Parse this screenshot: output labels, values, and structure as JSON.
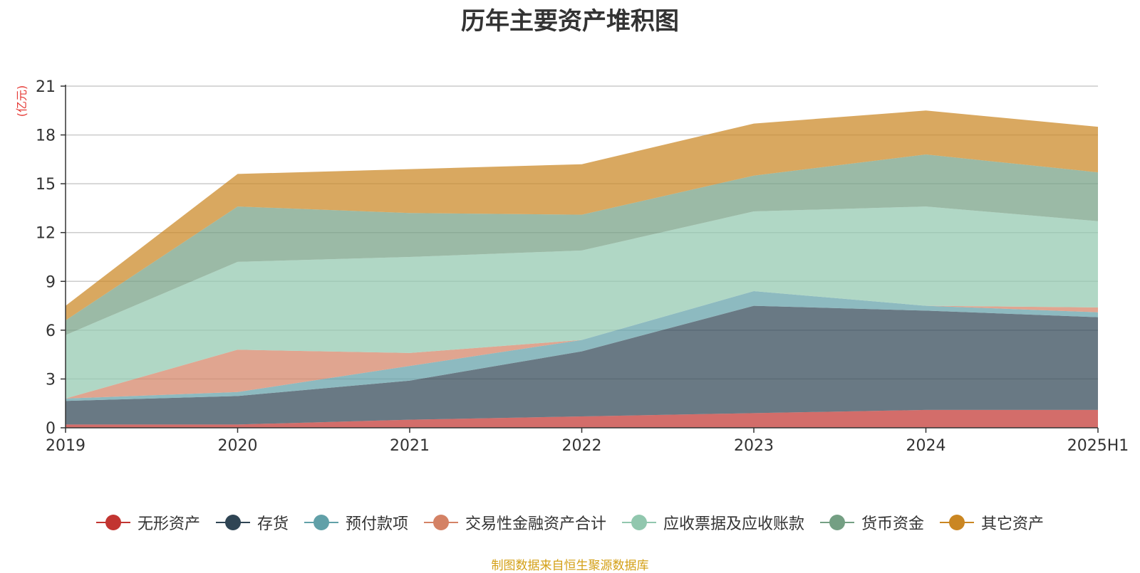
{
  "title": "历年主要资产堆积图",
  "source_note": "制图数据来自恒生聚源数据库",
  "chart_data": {
    "type": "area",
    "stacked": true,
    "title": "历年主要资产堆积图",
    "ylabel": "(亿元)",
    "xlabel": "",
    "ylim": [
      0,
      21
    ],
    "yticks": [
      0,
      3,
      6,
      9,
      12,
      15,
      18,
      21
    ],
    "grid": true,
    "legend_position": "bottom",
    "categories": [
      "2019",
      "2020",
      "2021",
      "2022",
      "2023",
      "2024",
      "2025H1"
    ],
    "series": [
      {
        "name": "无形资产",
        "color": "#c23531",
        "values": [
          0.2,
          0.2,
          0.5,
          0.7,
          0.9,
          1.1,
          1.1
        ]
      },
      {
        "name": "存货",
        "color": "#2f4554",
        "values": [
          1.45,
          1.75,
          2.4,
          4.0,
          6.6,
          6.1,
          5.7
        ]
      },
      {
        "name": "预付款项",
        "color": "#61a0a8",
        "values": [
          0.15,
          0.25,
          0.9,
          0.7,
          0.9,
          0.3,
          0.3
        ]
      },
      {
        "name": "交易性金融资产合计",
        "color": "#d48265",
        "values": [
          0.0,
          2.6,
          0.8,
          0.0,
          0.0,
          0.0,
          0.3
        ]
      },
      {
        "name": "应收票据及应收账款",
        "color": "#91c7ae",
        "values": [
          3.9,
          5.4,
          5.9,
          5.5,
          4.9,
          6.1,
          5.3
        ]
      },
      {
        "name": "货币资金",
        "color": "#749f83",
        "values": [
          0.9,
          3.4,
          2.7,
          2.2,
          2.2,
          3.2,
          3.0
        ]
      },
      {
        "name": "其它资产",
        "color": "#ca8622",
        "values": [
          0.9,
          2.0,
          2.7,
          3.1,
          3.2,
          2.7,
          2.8
        ]
      }
    ]
  }
}
